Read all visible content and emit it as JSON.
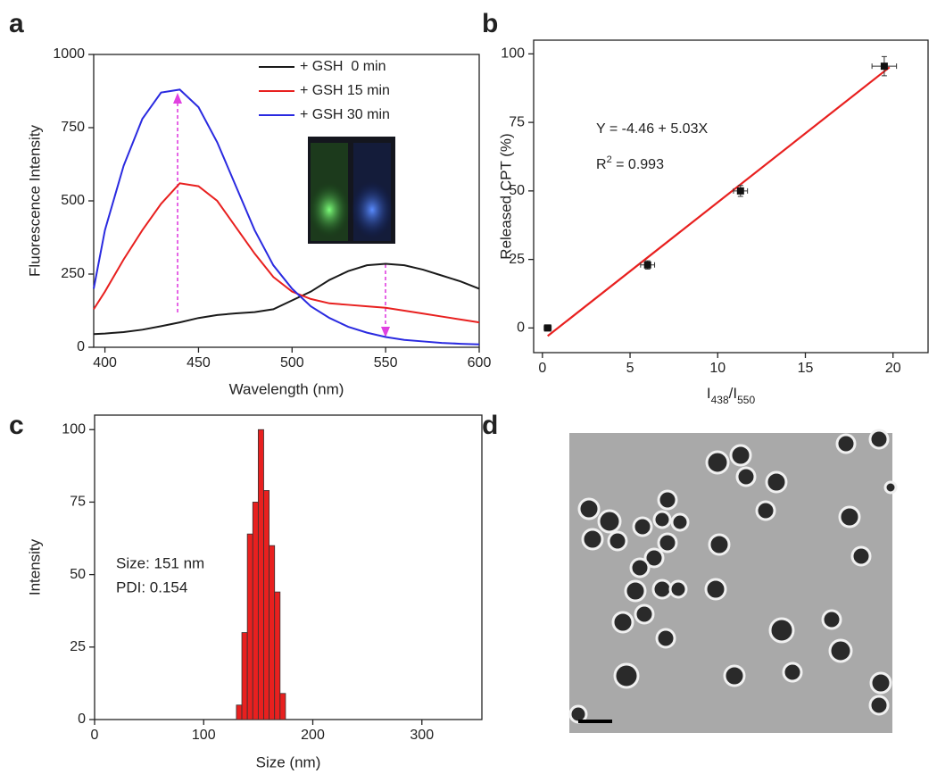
{
  "chart_data": [
    {
      "type": "line",
      "panel_label": "a",
      "x_label": "Wavelength (nm)",
      "y_label": "Fluorescence Intensity",
      "x": [
        394,
        400,
        410,
        420,
        430,
        440,
        450,
        460,
        470,
        480,
        490,
        500,
        510,
        520,
        530,
        540,
        550,
        560,
        570,
        580,
        590,
        600
      ],
      "series": [
        {
          "name": "+ GSH  0 min",
          "color": "#1a1a1a",
          "values": [
            45,
            47,
            52,
            60,
            72,
            85,
            100,
            110,
            116,
            120,
            130,
            160,
            190,
            230,
            260,
            280,
            285,
            280,
            265,
            245,
            225,
            200
          ]
        },
        {
          "name": "+ GSH 15 min",
          "color": "#e8201f",
          "values": [
            130,
            190,
            300,
            400,
            490,
            560,
            550,
            500,
            410,
            320,
            240,
            190,
            165,
            150,
            145,
            140,
            135,
            125,
            115,
            105,
            95,
            85
          ]
        },
        {
          "name": "+ GSH 30 min",
          "color": "#2a2ae0",
          "values": [
            200,
            400,
            620,
            780,
            870,
            880,
            820,
            700,
            550,
            400,
            280,
            200,
            140,
            100,
            70,
            50,
            35,
            25,
            20,
            15,
            12,
            10
          ]
        }
      ],
      "xlim": [
        394,
        600
      ],
      "xticks": [
        400,
        450,
        500,
        550,
        600
      ],
      "ylim": [
        0,
        1000
      ],
      "yticks": [
        0,
        250,
        500,
        750,
        1000
      ],
      "legend": "top-right"
    },
    {
      "type": "scatter",
      "panel_label": "b",
      "x_label_parts": [
        "I",
        "438",
        "/I",
        "550"
      ],
      "y_label": "Released CPT (%)",
      "x": [
        0.3,
        6,
        11.3,
        19.5
      ],
      "values": [
        0,
        23,
        50,
        95.5
      ],
      "x_errors": [
        0.2,
        0.4,
        0.4,
        0.7
      ],
      "y_errors": [
        1,
        1.5,
        2,
        3.5
      ],
      "color": "#111111",
      "fit": {
        "color": "#e8201f",
        "x": [
          0.3,
          19.8
        ],
        "values": [
          -2.95,
          95.13
        ]
      },
      "equation": "Y = -4.46 + 5.03X",
      "r2_parts": [
        "R",
        "2",
        " = 0.993"
      ],
      "xlim": [
        -0.5,
        22
      ],
      "xticks": [
        0,
        5,
        10,
        15,
        20
      ],
      "ylim": [
        -9,
        105
      ],
      "yticks": [
        0,
        25,
        50,
        75,
        100
      ]
    },
    {
      "type": "histogram",
      "panel_label": "c",
      "x_label": "Size (nm)",
      "y_label": "Intensity",
      "bins": [
        130,
        135,
        140,
        145,
        150,
        155,
        160,
        165,
        170,
        175
      ],
      "values": [
        5,
        30,
        64,
        75,
        100,
        79,
        60,
        44,
        9
      ],
      "color": "#e8201f",
      "annotations": [
        "Size: 151 nm",
        "PDI: 0.154"
      ],
      "xlim": [
        0,
        355
      ],
      "xticks": [
        0,
        100,
        200,
        300
      ],
      "ylim": [
        0,
        105
      ],
      "yticks": [
        0,
        25,
        50,
        75,
        100
      ]
    }
  ],
  "image_panel": {
    "panel_label": "d"
  }
}
